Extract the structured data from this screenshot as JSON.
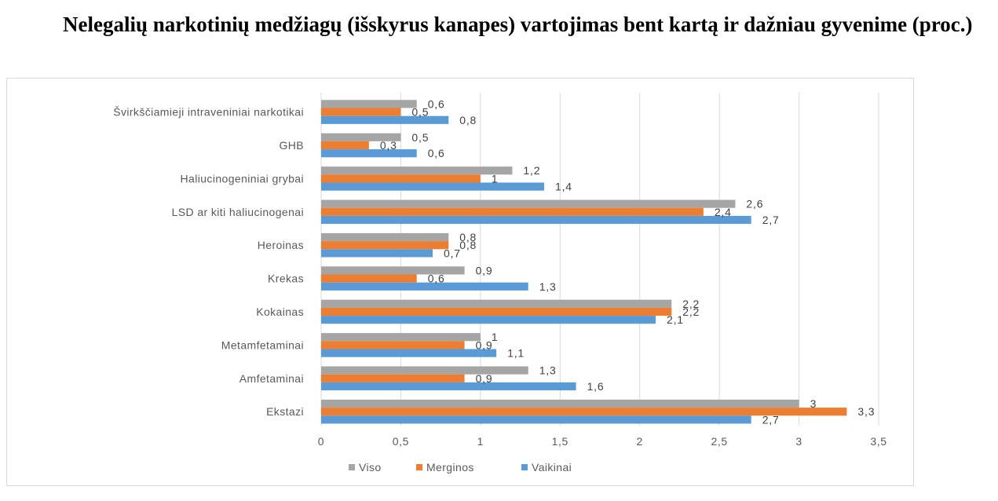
{
  "title": "Nelegalių narkotinių medžiagų (išskyrus kanapes) vartojimas bent kartą ir dažniau gyvenime  (proc.)",
  "chart_data": {
    "type": "bar",
    "orientation": "horizontal",
    "categories": [
      "Švirkščiamieji intraveniniai narkotikai",
      "GHB",
      "Haliucinogeniniai grybai",
      "LSD ar kiti haliucinogenai",
      "Heroinas",
      "Krekas",
      "Kokainas",
      "Metamfetaminai",
      "Amfetaminai",
      "Ekstazi"
    ],
    "series": [
      {
        "name": "Viso",
        "color": "#a5a5a5",
        "values": [
          0.6,
          0.5,
          1.2,
          2.6,
          0.8,
          0.9,
          2.2,
          1,
          1.3,
          3
        ],
        "labels": [
          "0,6",
          "0,5",
          "1,2",
          "2,6",
          "0,8",
          "0,9",
          "2,2",
          "1",
          "1,3",
          "3"
        ]
      },
      {
        "name": "Merginos",
        "color": "#ed7d31",
        "values": [
          0.5,
          0.3,
          1,
          2.4,
          0.8,
          0.6,
          2.2,
          0.9,
          0.9,
          3.3
        ],
        "labels": [
          "0,5",
          "0,3",
          "1",
          "2,4",
          "0,8",
          "0,6",
          "2,2",
          "0,9",
          "0,9",
          "3,3"
        ]
      },
      {
        "name": "Vaikinai",
        "color": "#5b9bd5",
        "values": [
          0.8,
          0.6,
          1.4,
          2.7,
          0.7,
          1.3,
          2.1,
          1.1,
          1.6,
          2.7
        ],
        "labels": [
          "0,8",
          "0,6",
          "1,4",
          "2,7",
          "0,7",
          "1,3",
          "2,1",
          "1,1",
          "1,6",
          "2,7"
        ]
      }
    ],
    "xlim": [
      0,
      3.5
    ],
    "xticks": [
      0,
      0.5,
      1,
      1.5,
      2,
      2.5,
      3,
      3.5
    ],
    "xtick_labels": [
      "0",
      "0,5",
      "1",
      "1,5",
      "2",
      "2,5",
      "3",
      "3,5"
    ],
    "grid": true,
    "legend_position": "bottom-left"
  }
}
